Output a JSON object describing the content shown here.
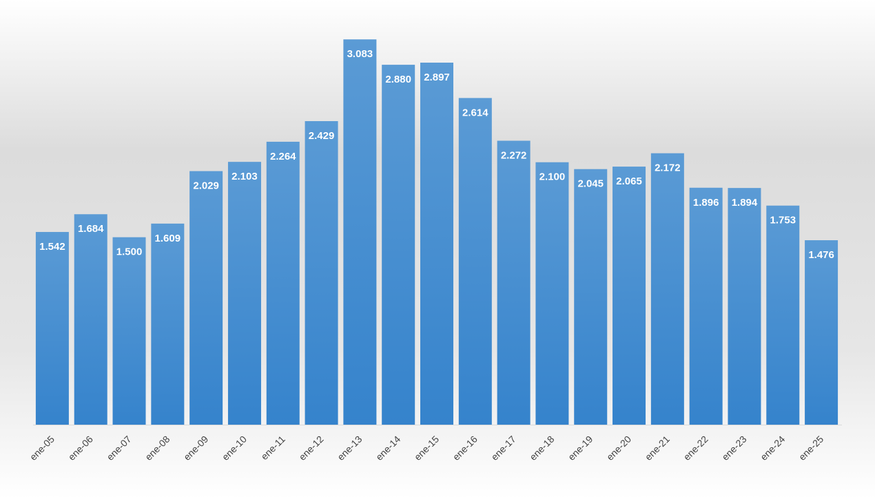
{
  "chart_data": {
    "type": "bar",
    "categories": [
      "ene-05",
      "ene-06",
      "ene-07",
      "ene-08",
      "ene-09",
      "ene-10",
      "ene-11",
      "ene-12",
      "ene-13",
      "ene-14",
      "ene-15",
      "ene-16",
      "ene-17",
      "ene-18",
      "ene-19",
      "ene-20",
      "ene-21",
      "ene-22",
      "ene-23",
      "ene-24",
      "ene-25"
    ],
    "values": [
      1542,
      1684,
      1500,
      1609,
      2029,
      2103,
      2264,
      2429,
      3083,
      2880,
      2897,
      2614,
      2272,
      2100,
      2045,
      2065,
      2172,
      1896,
      1894,
      1753,
      1476
    ],
    "value_labels": [
      "1.542",
      "1.684",
      "1.500",
      "1.609",
      "2.029",
      "2.103",
      "2.264",
      "2.429",
      "3.083",
      "2.880",
      "2.897",
      "2.614",
      "2.272",
      "2.100",
      "2.045",
      "2.065",
      "2.172",
      "1.896",
      "1.894",
      "1.753",
      "1.476"
    ],
    "color": "#4a90d6",
    "ylim": [
      0,
      3200
    ]
  }
}
